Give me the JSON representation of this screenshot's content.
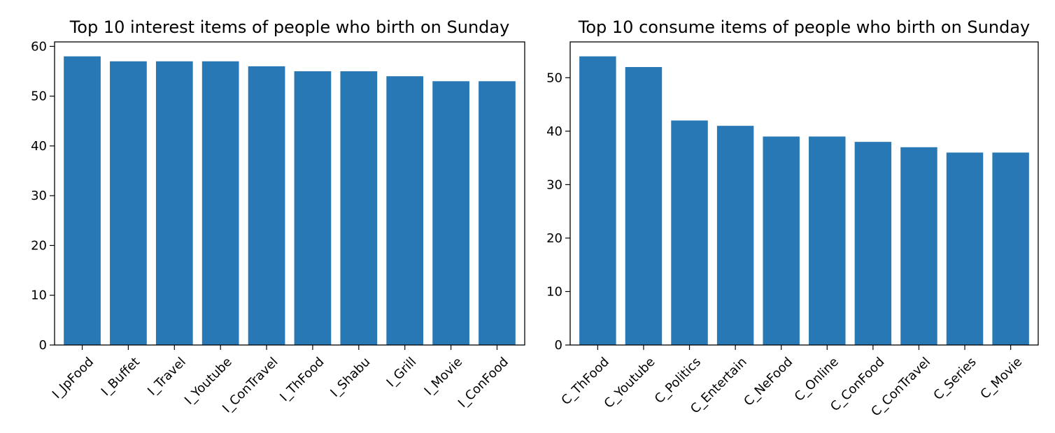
{
  "chart_data": [
    {
      "type": "bar",
      "title": "Top 10 interest items of people who birth on Sunday",
      "xlabel": "",
      "ylabel": "",
      "categories": [
        "I_JpFood",
        "I_Buffet",
        "I_Travel",
        "I_Youtube",
        "I_ConTravel",
        "I_ThFood",
        "I_Shabu",
        "I_Grill",
        "I_Movie",
        "I_ConFood"
      ],
      "values": [
        58,
        57,
        57,
        57,
        56,
        55,
        55,
        54,
        53,
        53
      ],
      "ylim": [
        0,
        60.9
      ],
      "yticks": [
        0,
        10,
        20,
        30,
        40,
        50,
        60
      ],
      "bar_color": "#2878b5",
      "grid": false,
      "legend": "none"
    },
    {
      "type": "bar",
      "title": "Top 10 consume items of people who birth on Sunday",
      "xlabel": "",
      "ylabel": "",
      "categories": [
        "C_ThFood",
        "C_Youtube",
        "C_Politics",
        "C_Entertain",
        "C_NeFood",
        "C_Online",
        "C_ConFood",
        "C_ConTravel",
        "C_Series",
        "C_Movie"
      ],
      "values": [
        54,
        52,
        42,
        41,
        39,
        39,
        38,
        37,
        36,
        36
      ],
      "ylim": [
        0,
        56.7
      ],
      "yticks": [
        0,
        10,
        20,
        30,
        40,
        50
      ],
      "bar_color": "#2878b5",
      "grid": false,
      "legend": "none"
    }
  ]
}
